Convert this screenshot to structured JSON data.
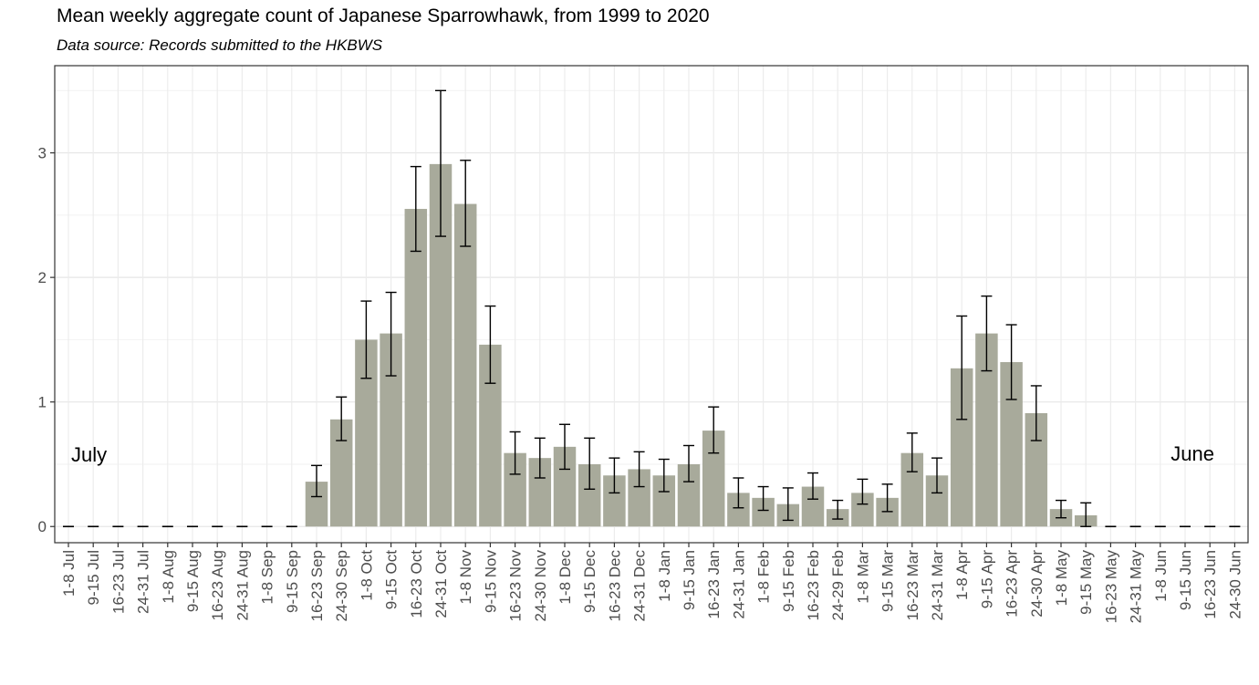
{
  "header": {
    "title": "Mean weekly aggregate count of Japanese Sparrowhawk, from 1999 to 2020",
    "subtitle": "Data source: Records submitted to the HKBWS"
  },
  "chart_data": {
    "type": "bar",
    "title": "Mean weekly aggregate count of Japanese Sparrowhawk, from 1999 to 2020",
    "subtitle": "Data source: Records submitted to the HKBWS",
    "xlabel": "",
    "ylabel": "",
    "ylim": [
      -0.13,
      3.7
    ],
    "yticks": [
      0,
      1,
      2,
      3
    ],
    "grid": true,
    "bar_color": "#a8aa9b",
    "categories": [
      "1-8 Jul",
      "9-15 Jul",
      "16-23 Jul",
      "24-31 Jul",
      "1-8 Aug",
      "9-15 Aug",
      "16-23 Aug",
      "24-31 Aug",
      "1-8 Sep",
      "9-15 Sep",
      "16-23 Sep",
      "24-30 Sep",
      "1-8 Oct",
      "9-15 Oct",
      "16-23 Oct",
      "24-31 Oct",
      "1-8 Nov",
      "9-15 Nov",
      "16-23 Nov",
      "24-30 Nov",
      "1-8 Dec",
      "9-15 Dec",
      "16-23 Dec",
      "24-31 Dec",
      "1-8 Jan",
      "9-15 Jan",
      "16-23 Jan",
      "24-31 Jan",
      "1-8 Feb",
      "9-15 Feb",
      "16-23 Feb",
      "24-29 Feb",
      "1-8 Mar",
      "9-15 Mar",
      "16-23 Mar",
      "24-31 Mar",
      "1-8 Apr",
      "9-15 Apr",
      "16-23 Apr",
      "24-30 Apr",
      "1-8 May",
      "9-15 May",
      "16-23 May",
      "24-31 May",
      "1-8 Jun",
      "9-15 Jun",
      "16-23 Jun",
      "24-30 Jun"
    ],
    "values": [
      0,
      0,
      0,
      0,
      0,
      0,
      0,
      0,
      0,
      0,
      0.36,
      0.86,
      1.5,
      1.55,
      2.55,
      2.91,
      2.59,
      1.46,
      0.59,
      0.55,
      0.64,
      0.5,
      0.41,
      0.46,
      0.41,
      0.5,
      0.77,
      0.27,
      0.23,
      0.18,
      0.32,
      0.14,
      0.27,
      0.23,
      0.59,
      0.41,
      1.27,
      1.55,
      1.32,
      0.91,
      0.14,
      0.09,
      0,
      0,
      0,
      0,
      0,
      0
    ],
    "error_low": [
      0,
      0,
      0,
      0,
      0,
      0,
      0,
      0,
      0,
      0,
      0.24,
      0.69,
      1.19,
      1.21,
      2.21,
      2.33,
      2.25,
      1.15,
      0.42,
      0.39,
      0.46,
      0.3,
      0.27,
      0.32,
      0.28,
      0.36,
      0.59,
      0.15,
      0.13,
      0.05,
      0.22,
      0.06,
      0.18,
      0.12,
      0.44,
      0.27,
      0.86,
      1.25,
      1.02,
      0.69,
      0.07,
      0.0,
      0,
      0,
      0,
      0,
      0,
      0
    ],
    "error_high": [
      0,
      0,
      0,
      0,
      0,
      0,
      0,
      0,
      0,
      0,
      0.49,
      1.04,
      1.81,
      1.88,
      2.89,
      3.5,
      2.94,
      1.77,
      0.76,
      0.71,
      0.82,
      0.71,
      0.55,
      0.6,
      0.54,
      0.65,
      0.96,
      0.39,
      0.32,
      0.31,
      0.43,
      0.21,
      0.38,
      0.34,
      0.75,
      0.55,
      1.69,
      1.85,
      1.62,
      1.13,
      0.21,
      0.19,
      0,
      0,
      0,
      0,
      0,
      0
    ],
    "annotations": [
      {
        "text": "July",
        "anchor": "start"
      },
      {
        "text": "June",
        "anchor": "end"
      }
    ]
  }
}
